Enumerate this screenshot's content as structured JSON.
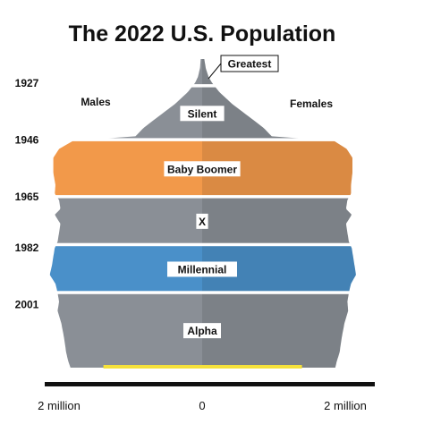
{
  "chart_data": {
    "type": "bar",
    "orientation": "horizontal-pyramid",
    "title": "The 2022 U.S. Population",
    "left_label": "Males",
    "right_label": "Females",
    "x_unit": "people",
    "xlim": [
      -2200000,
      2200000
    ],
    "x_ticks": [
      {
        "value": -2000000,
        "label": "2 million"
      },
      {
        "value": 0,
        "label": "0"
      },
      {
        "value": 2000000,
        "label": "2 million"
      }
    ],
    "y_ticks": [
      {
        "value": 1927,
        "label": "1927"
      },
      {
        "value": 1946,
        "label": "1946"
      },
      {
        "value": 1965,
        "label": "1965"
      },
      {
        "value": 1982,
        "label": "1982"
      },
      {
        "value": 2001,
        "label": "2001"
      }
    ],
    "year_range": [
      1919,
      2022
    ],
    "generations": [
      {
        "name": "Greatest",
        "start": 1919,
        "end": 1927,
        "color": "#8a8f96",
        "callout": true
      },
      {
        "name": "Silent",
        "start": 1928,
        "end": 1945,
        "color": "#8a8f96"
      },
      {
        "name": "Baby Boomer",
        "start": 1946,
        "end": 1964,
        "color": "#f2994a"
      },
      {
        "name": "X",
        "start": 1965,
        "end": 1980,
        "color": "#8a8f96"
      },
      {
        "name": "Millennial",
        "start": 1981,
        "end": 1996,
        "color": "#4a90c9"
      },
      {
        "name": "Alpha",
        "start": 1997,
        "end": 2022,
        "color": "#8a8f96"
      }
    ],
    "series": [
      {
        "name": "Males",
        "profile": [
          [
            1919,
            20000
          ],
          [
            1922,
            30000
          ],
          [
            1925,
            60000
          ],
          [
            1927,
            100000
          ],
          [
            1930,
            200000
          ],
          [
            1934,
            380000
          ],
          [
            1938,
            600000
          ],
          [
            1942,
            820000
          ],
          [
            1945,
            940000
          ],
          [
            1946,
            1780000
          ],
          [
            1949,
            2000000
          ],
          [
            1952,
            2080000
          ],
          [
            1957,
            2080000
          ],
          [
            1961,
            2050000
          ],
          [
            1964,
            2060000
          ],
          [
            1966,
            2000000
          ],
          [
            1969,
            1980000
          ],
          [
            1971,
            2060000
          ],
          [
            1974,
            1980000
          ],
          [
            1977,
            2000000
          ],
          [
            1980,
            2020000
          ],
          [
            1982,
            2060000
          ],
          [
            1985,
            2080000
          ],
          [
            1988,
            2100000
          ],
          [
            1991,
            2130000
          ],
          [
            1994,
            2050000
          ],
          [
            1997,
            2020000
          ],
          [
            2000,
            2000000
          ],
          [
            2003,
            2020000
          ],
          [
            2007,
            1970000
          ],
          [
            2012,
            1930000
          ],
          [
            2017,
            1900000
          ],
          [
            2020,
            1870000
          ],
          [
            2022,
            1840000
          ]
        ]
      },
      {
        "name": "Females",
        "profile": [
          [
            1919,
            30000
          ],
          [
            1922,
            50000
          ],
          [
            1925,
            90000
          ],
          [
            1927,
            140000
          ],
          [
            1930,
            240000
          ],
          [
            1934,
            420000
          ],
          [
            1938,
            640000
          ],
          [
            1942,
            860000
          ],
          [
            1945,
            980000
          ],
          [
            1946,
            1820000
          ],
          [
            1949,
            2020000
          ],
          [
            1952,
            2100000
          ],
          [
            1957,
            2100000
          ],
          [
            1961,
            2080000
          ],
          [
            1964,
            2080000
          ],
          [
            1966,
            2030000
          ],
          [
            1969,
            2010000
          ],
          [
            1971,
            2090000
          ],
          [
            1974,
            2010000
          ],
          [
            1977,
            2030000
          ],
          [
            1980,
            2050000
          ],
          [
            1982,
            2090000
          ],
          [
            1985,
            2110000
          ],
          [
            1988,
            2130000
          ],
          [
            1991,
            2150000
          ],
          [
            1994,
            2080000
          ],
          [
            1997,
            2050000
          ],
          [
            2000,
            2030000
          ],
          [
            2003,
            2040000
          ],
          [
            2007,
            1990000
          ],
          [
            2012,
            1950000
          ],
          [
            2017,
            1920000
          ],
          [
            2020,
            1880000
          ],
          [
            2022,
            1860000
          ]
        ]
      }
    ],
    "newest_band_color": "#f5e13a",
    "grid": false
  }
}
